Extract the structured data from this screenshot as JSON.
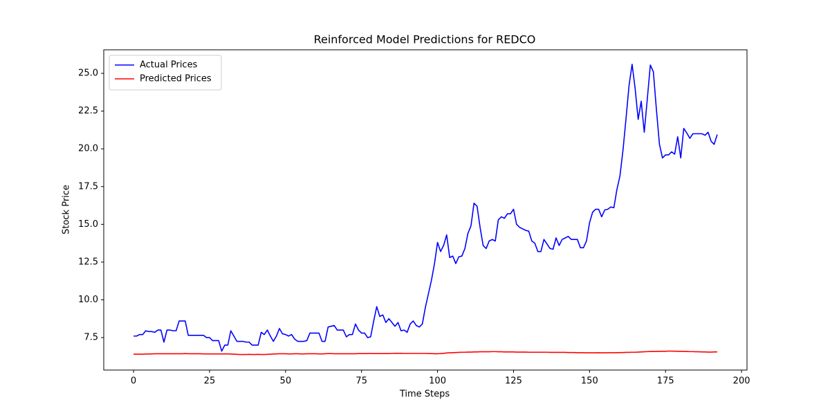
{
  "chart_data": {
    "type": "line",
    "title": "Reinforced Model Predictions for REDCO",
    "x_label": "Time Steps",
    "y_label": "Stock Price",
    "legend": "upper left",
    "grid": false,
    "xlim": [
      -9.8,
      201.8
    ],
    "ylim": [
      5.35,
      26.56
    ],
    "xticks": [
      0,
      25,
      50,
      75,
      100,
      125,
      150,
      175,
      200
    ],
    "yticks": [
      7.5,
      {
        "value": 10,
        "label": "10.0"
      },
      12.5,
      {
        "value": 15,
        "label": "15.0"
      },
      17.5,
      {
        "value": 20,
        "label": "20.0"
      },
      22.5,
      {
        "value": 25,
        "label": "25.0"
      }
    ],
    "x": [
      0,
      1,
      2,
      3,
      4,
      5,
      6,
      7,
      8,
      9,
      10,
      11,
      12,
      13,
      14,
      15,
      16,
      17,
      18,
      19,
      20,
      21,
      22,
      23,
      24,
      25,
      26,
      27,
      28,
      29,
      30,
      31,
      32,
      33,
      34,
      35,
      36,
      37,
      38,
      39,
      40,
      41,
      42,
      43,
      44,
      45,
      46,
      47,
      48,
      49,
      50,
      51,
      52,
      53,
      54,
      55,
      56,
      57,
      58,
      59,
      60,
      61,
      62,
      63,
      64,
      65,
      66,
      67,
      68,
      69,
      70,
      71,
      72,
      73,
      74,
      75,
      76,
      77,
      78,
      79,
      80,
      81,
      82,
      83,
      84,
      85,
      86,
      87,
      88,
      89,
      90,
      91,
      92,
      93,
      94,
      95,
      96,
      97,
      98,
      99,
      100,
      101,
      102,
      103,
      104,
      105,
      106,
      107,
      108,
      109,
      110,
      111,
      112,
      113,
      114,
      115,
      116,
      117,
      118,
      119,
      120,
      121,
      122,
      123,
      124,
      125,
      126,
      127,
      128,
      129,
      130,
      131,
      132,
      133,
      134,
      135,
      136,
      137,
      138,
      139,
      140,
      141,
      142,
      143,
      144,
      145,
      146,
      147,
      148,
      149,
      150,
      151,
      152,
      153,
      154,
      155,
      156,
      157,
      158,
      159,
      160,
      161,
      162,
      163,
      164,
      165,
      166,
      167,
      168,
      169,
      170,
      171,
      172,
      173,
      174,
      175,
      176,
      177,
      178,
      179,
      180,
      181,
      182,
      183,
      184,
      185,
      186,
      187,
      188,
      189,
      190,
      191,
      192
    ],
    "series": [
      {
        "name": "Actual Prices",
        "color": "#0000ff",
        "values": [
          7.6,
          7.6,
          7.7,
          7.7,
          7.95,
          7.9,
          7.9,
          7.85,
          8.0,
          8.0,
          7.2,
          8.0,
          8.0,
          7.95,
          7.95,
          8.6,
          8.6,
          8.6,
          7.65,
          7.65,
          7.65,
          7.65,
          7.65,
          7.65,
          7.5,
          7.5,
          7.3,
          7.3,
          7.3,
          6.6,
          7.0,
          7.0,
          7.95,
          7.6,
          7.25,
          7.25,
          7.25,
          7.2,
          7.2,
          7.0,
          7.0,
          7.0,
          7.85,
          7.7,
          8.0,
          7.6,
          7.25,
          7.6,
          8.1,
          7.75,
          7.7,
          7.6,
          7.7,
          7.4,
          7.25,
          7.25,
          7.25,
          7.3,
          7.8,
          7.8,
          7.8,
          7.8,
          7.25,
          7.25,
          8.2,
          8.25,
          8.3,
          8.0,
          8.0,
          8.0,
          7.55,
          7.7,
          7.7,
          8.4,
          8.0,
          7.8,
          7.8,
          7.5,
          7.55,
          8.6,
          9.55,
          8.9,
          9.0,
          8.5,
          8.75,
          8.5,
          8.25,
          8.5,
          7.95,
          8.0,
          7.85,
          8.4,
          8.6,
          8.3,
          8.2,
          8.4,
          9.5,
          10.4,
          11.3,
          12.4,
          13.8,
          13.2,
          13.6,
          14.3,
          12.8,
          12.9,
          12.4,
          12.85,
          12.9,
          13.4,
          14.4,
          14.9,
          16.4,
          16.2,
          14.8,
          13.6,
          13.4,
          13.9,
          14.0,
          13.9,
          15.3,
          15.5,
          15.4,
          15.7,
          15.7,
          16.0,
          15.0,
          14.8,
          14.7,
          14.6,
          14.55,
          13.9,
          13.75,
          13.2,
          13.2,
          14.0,
          13.7,
          13.4,
          13.35,
          14.1,
          13.6,
          14.0,
          14.1,
          14.2,
          14.0,
          14.0,
          14.0,
          13.45,
          13.45,
          13.9,
          15.1,
          15.8,
          16.0,
          16.0,
          15.5,
          15.95,
          16.0,
          16.15,
          16.1,
          17.3,
          18.2,
          19.9,
          22.0,
          24.2,
          25.6,
          24.0,
          21.95,
          23.15,
          21.1,
          23.3,
          25.55,
          25.1,
          22.6,
          20.3,
          19.4,
          19.6,
          19.6,
          19.8,
          19.65,
          20.8,
          19.4,
          21.35,
          21.05,
          20.7,
          21.0,
          21.0,
          21.0,
          21.0,
          20.9,
          21.1,
          20.5,
          20.3,
          20.95
        ]
      },
      {
        "name": "Predicted Prices",
        "color": "#ff0000",
        "values": [
          6.4,
          6.4,
          6.4,
          6.4,
          6.41,
          6.41,
          6.42,
          6.43,
          6.43,
          6.43,
          6.43,
          6.43,
          6.43,
          6.43,
          6.43,
          6.43,
          6.43,
          6.44,
          6.43,
          6.43,
          6.43,
          6.43,
          6.43,
          6.42,
          6.42,
          6.42,
          6.42,
          6.42,
          6.42,
          6.42,
          6.42,
          6.42,
          6.41,
          6.4,
          6.39,
          6.38,
          6.38,
          6.38,
          6.39,
          6.38,
          6.38,
          6.39,
          6.38,
          6.38,
          6.39,
          6.4,
          6.41,
          6.42,
          6.43,
          6.43,
          6.43,
          6.42,
          6.42,
          6.43,
          6.43,
          6.42,
          6.42,
          6.43,
          6.43,
          6.43,
          6.43,
          6.42,
          6.42,
          6.43,
          6.44,
          6.44,
          6.43,
          6.43,
          6.43,
          6.43,
          6.43,
          6.43,
          6.43,
          6.43,
          6.44,
          6.44,
          6.44,
          6.44,
          6.45,
          6.44,
          6.44,
          6.44,
          6.44,
          6.44,
          6.44,
          6.45,
          6.46,
          6.46,
          6.46,
          6.45,
          6.45,
          6.45,
          6.45,
          6.45,
          6.45,
          6.45,
          6.45,
          6.44,
          6.44,
          6.43,
          6.43,
          6.44,
          6.46,
          6.48,
          6.49,
          6.5,
          6.51,
          6.52,
          6.53,
          6.53,
          6.54,
          6.54,
          6.55,
          6.55,
          6.56,
          6.56,
          6.56,
          6.56,
          6.57,
          6.57,
          6.56,
          6.56,
          6.55,
          6.55,
          6.55,
          6.55,
          6.54,
          6.54,
          6.54,
          6.54,
          6.53,
          6.53,
          6.53,
          6.53,
          6.53,
          6.53,
          6.53,
          6.52,
          6.52,
          6.52,
          6.52,
          6.52,
          6.52,
          6.51,
          6.51,
          6.51,
          6.5,
          6.5,
          6.5,
          6.49,
          6.49,
          6.49,
          6.49,
          6.5,
          6.49,
          6.49,
          6.5,
          6.5,
          6.5,
          6.5,
          6.51,
          6.51,
          6.52,
          6.52,
          6.53,
          6.53,
          6.54,
          6.55,
          6.56,
          6.57,
          6.58,
          6.58,
          6.58,
          6.59,
          6.59,
          6.59,
          6.61,
          6.6,
          6.6,
          6.59,
          6.59,
          6.58,
          6.58,
          6.57,
          6.57,
          6.56,
          6.56,
          6.55,
          6.55,
          6.54,
          6.54,
          6.55,
          6.55
        ]
      }
    ]
  }
}
